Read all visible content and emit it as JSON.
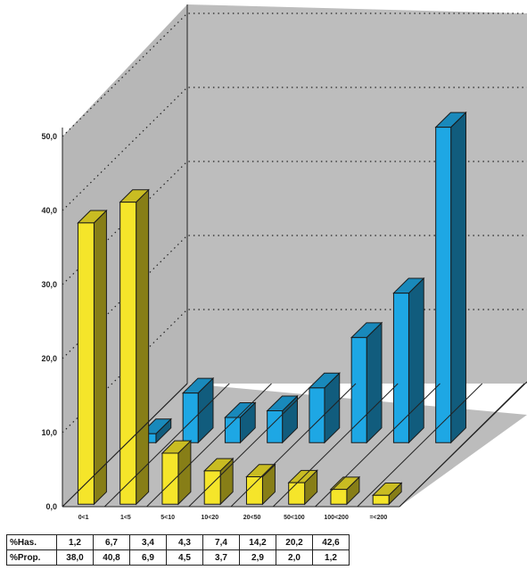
{
  "chart_data": {
    "type": "bar",
    "categories": [
      "0<1",
      "1<5",
      "5<10",
      "10<20",
      "20<50",
      "50<100",
      "100<200",
      "=<200"
    ],
    "series": [
      {
        "name": "%Has.",
        "values": [
          1.2,
          6.7,
          3.4,
          4.3,
          7.4,
          14.2,
          20.2,
          42.6
        ]
      },
      {
        "name": "%Prop.",
        "values": [
          38.0,
          40.8,
          6.9,
          4.5,
          3.7,
          2.9,
          2.0,
          1.2
        ]
      }
    ],
    "ylim": [
      0,
      50
    ],
    "yticks": [
      "0,0",
      "10,0",
      "20,0",
      "30,0",
      "40,0",
      "50,0"
    ],
    "colors": {
      "front_series": "#f5e52a",
      "back_series": "#1ea7e4",
      "walls": "#bdbdbd",
      "floor": "#bcbcbc"
    },
    "grid": true,
    "table": {
      "rows": [
        {
          "label": "%Has.",
          "cells": [
            "1,2",
            "6,7",
            "3,4",
            "4,3",
            "7,4",
            "14,2",
            "20,2",
            "42,6"
          ]
        },
        {
          "label": "%Prop.",
          "cells": [
            "38,0",
            "40,8",
            "6,9",
            "4,5",
            "3,7",
            "2,9",
            "2,0",
            "1,2"
          ]
        }
      ]
    }
  }
}
